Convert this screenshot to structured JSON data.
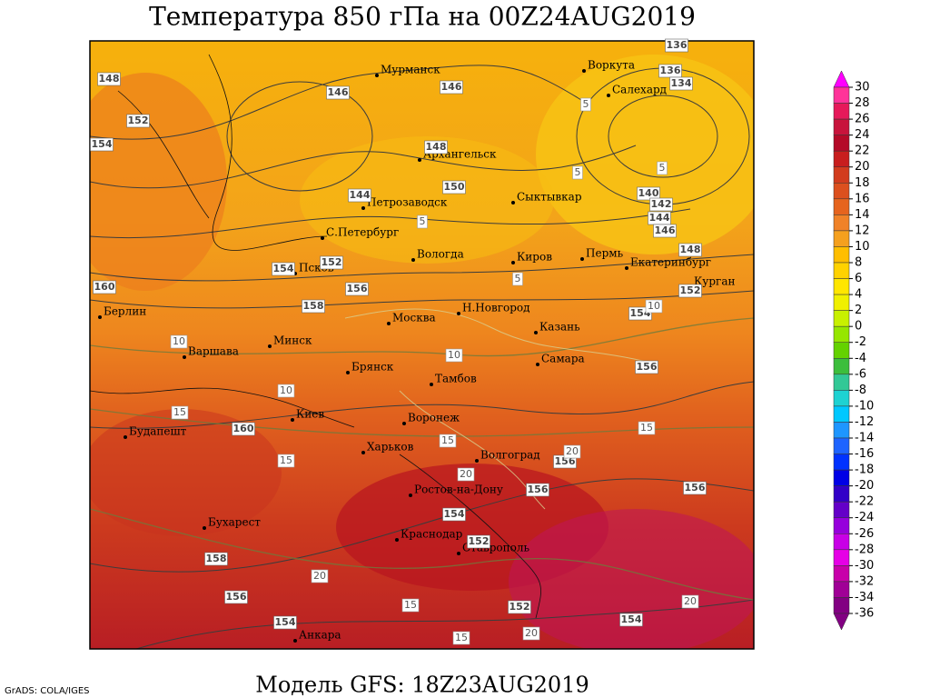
{
  "title": "Температура 850 гПа на 00Z24AUG2019",
  "footer": "Модель GFS: 18Z23AUG2019",
  "credit": "GrADS: COLA/IGES",
  "cities": [
    "Мурманск",
    "Воркута",
    "Салехард",
    "Архангельск",
    "Сыктывкар",
    "Петрозаводск",
    "С.Петербург",
    "Вологда",
    "Киров",
    "Пермь",
    "Екатеринбург",
    "Курган",
    "Псков",
    "Берлин",
    "Москва",
    "Н.Новгород",
    "Казань",
    "Минск",
    "Варшава",
    "Брянск",
    "Самара",
    "Тамбов",
    "Киев",
    "Воронеж",
    "Будапешт",
    "Харьков",
    "Волгоград",
    "Ростов-на-Дону",
    "Бухарест",
    "Краснодар",
    "Ставрополь",
    "Анкара"
  ],
  "contour_labels": [
    148,
    146,
    146,
    136,
    136,
    134,
    152,
    154,
    148,
    144,
    150,
    140,
    142,
    144,
    146,
    148,
    152,
    154,
    156,
    160,
    158,
    152,
    154,
    156,
    160,
    156,
    156,
    156,
    154,
    152,
    158,
    156,
    154,
    152,
    154
  ],
  "isotherm_labels": [
    5,
    5,
    5,
    5,
    5,
    10,
    10,
    10,
    15,
    15,
    15,
    15,
    20,
    20,
    20,
    15,
    15,
    20,
    20,
    10
  ],
  "colorbar": {
    "levels": [
      30,
      28,
      26,
      24,
      22,
      20,
      18,
      16,
      14,
      12,
      10,
      8,
      6,
      4,
      2,
      0,
      -2,
      -4,
      -6,
      -8,
      -10,
      -12,
      -14,
      -16,
      -18,
      -20,
      -22,
      -24,
      -26,
      -28,
      -30,
      -32,
      -34,
      -36
    ],
    "colors": [
      "#ff00ff",
      "#ff3399",
      "#e6195a",
      "#c8143c",
      "#b40a28",
      "#c81e1e",
      "#d23c1e",
      "#dc501e",
      "#e6641e",
      "#f08228",
      "#f5a01e",
      "#ffbe00",
      "#ffd200",
      "#ffe600",
      "#f0f000",
      "#c8f000",
      "#96e600",
      "#64d200",
      "#3cbe3c",
      "#32c896",
      "#1ed2d2",
      "#00c8ff",
      "#1e96ff",
      "#1e64ff",
      "#0032ff",
      "#0000e6",
      "#3200c8",
      "#6400c8",
      "#9600dc",
      "#c800e6",
      "#e600e6",
      "#c800aa",
      "#a00096",
      "#820082"
    ]
  }
}
